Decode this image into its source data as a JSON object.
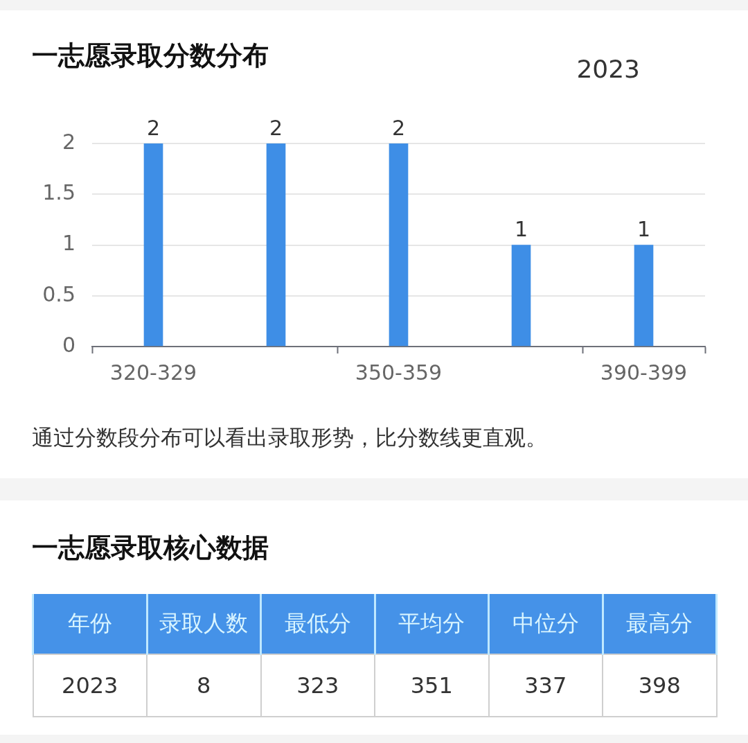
{
  "chart_data": [
    {
      "type": "bar",
      "title": "一志愿录取分数分布",
      "subtitle": "2023",
      "categories": [
        "320-329",
        null,
        "350-359",
        null,
        "390-399"
      ],
      "values": [
        2,
        2,
        2,
        1,
        1
      ],
      "color": "#3e8ee6",
      "ylim": [
        0,
        2
      ],
      "yticks": [
        0,
        0.5,
        1,
        1.5,
        2
      ],
      "grid": "y",
      "data_labels": true,
      "annotations": [
        "通过分数段分布可以看出录取形势，比分数线更直观。"
      ]
    },
    {
      "type": "other",
      "title": "一志愿录取核心数据",
      "categories": [
        "年份",
        "录取人数",
        "最低分",
        "平均分",
        "中位分",
        "最高分"
      ],
      "values": [
        2023,
        8,
        323,
        351,
        337,
        398
      ],
      "data_labels": true
    }
  ]
}
